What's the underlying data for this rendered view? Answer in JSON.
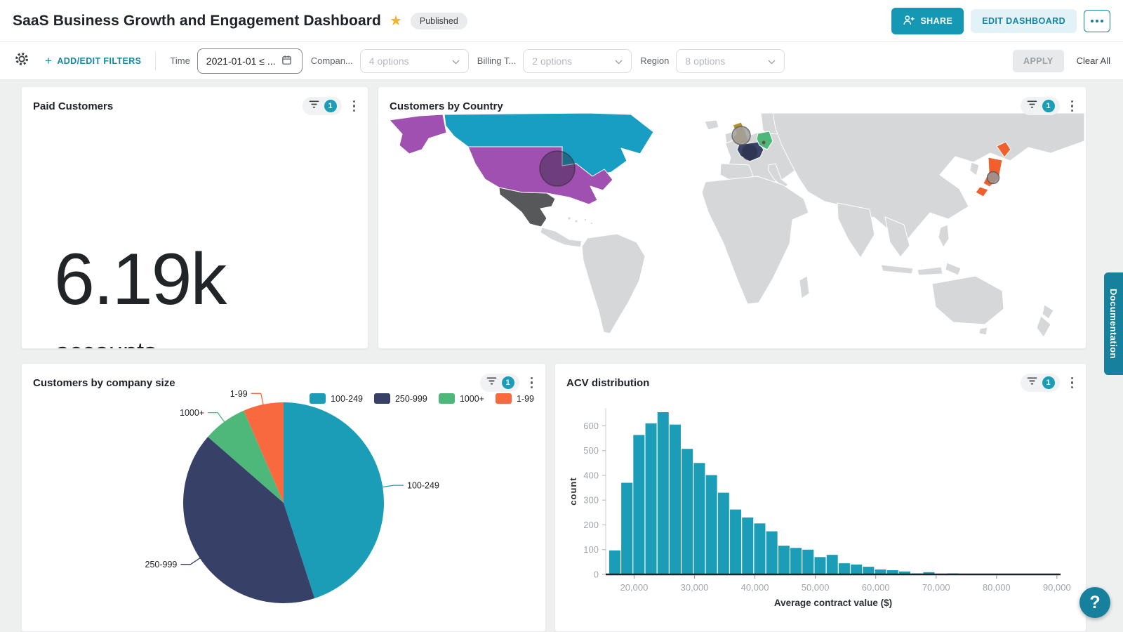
{
  "header": {
    "title": "SaaS Business Growth and Engagement Dashboard",
    "status_badge": "Published",
    "share_label": "SHARE",
    "edit_dashboard_label": "EDIT DASHBOARD"
  },
  "filter_bar": {
    "plus_sign": "+",
    "add_edit_filters_label": "ADD/EDIT FILTERS",
    "filters": [
      {
        "label": "Time",
        "value": "2021-01-01 ≤ ...",
        "type": "date-range"
      },
      {
        "label": "Compan...",
        "value": "4 options",
        "type": "multi-select"
      },
      {
        "label": "Billing T...",
        "value": "2 options",
        "type": "multi-select"
      },
      {
        "label": "Region",
        "value": "8 options",
        "type": "multi-select"
      }
    ],
    "apply_label": "APPLY",
    "clear_all_label": "Clear All"
  },
  "cards": {
    "kpi": {
      "title": "Paid Customers",
      "filter_count": "1",
      "value": "6.19k",
      "unit": "accounts"
    },
    "map": {
      "title": "Customers by Country",
      "filter_count": "1",
      "land_color": "#d5d7d8",
      "border_color": "#ffffff",
      "country_colors": {
        "canada": "#189ec2",
        "usa": "#a050b0",
        "alaska": "#a050b0",
        "mexico": "#57585a",
        "uk": "#b5912e",
        "france": "#39436b",
        "germany": "#4eb87b",
        "japan": "#f15f2c"
      }
    },
    "pie": {
      "title": "Customers by company size",
      "filter_count": "1"
    },
    "hist": {
      "title": "ACV distribution",
      "filter_count": "1"
    }
  },
  "chart_data": [
    {
      "id": "customers-by-company-size",
      "type": "pie",
      "title": "Customers by company size",
      "categories": [
        "100-249",
        "250-999",
        "1000+",
        "1-99"
      ],
      "values_percent": [
        45.0,
        41.4,
        7.1,
        6.5
      ],
      "colors": [
        "#1b9db8",
        "#374168",
        "#4db87a",
        "#f9693f"
      ],
      "legend_position": "top-right",
      "start_angle_deg": 0,
      "direction": "clockwise",
      "labels": "outside-leader-lines"
    },
    {
      "id": "acv-distribution",
      "type": "bar",
      "title": "ACV distribution",
      "xlabel": "Average contract value ($)",
      "ylabel": "count",
      "bar_color": "#1b9db8",
      "bin_start": 15800,
      "bin_width": 2000,
      "xlim": [
        15300,
        90600
      ],
      "ylim": [
        0,
        672
      ],
      "x_ticks": [
        20000,
        30000,
        40000,
        50000,
        60000,
        70000,
        80000,
        90000
      ],
      "y_ticks": [
        0,
        100,
        200,
        300,
        400,
        500,
        600
      ],
      "values": [
        97,
        370,
        563,
        610,
        655,
        605,
        507,
        450,
        401,
        330,
        262,
        230,
        206,
        174,
        116,
        107,
        100,
        70,
        79,
        45,
        40,
        31,
        20,
        17,
        12,
        4,
        9,
        0,
        4
      ]
    }
  ],
  "side": {
    "documentation_label": "Documentation",
    "help_label": "?"
  },
  "colors": {
    "accent": "#1598b4",
    "accent_dark": "#17809d",
    "link": "#1486a3",
    "page_bg": "#eef0f0",
    "chart_teal": "#1b9db8"
  }
}
